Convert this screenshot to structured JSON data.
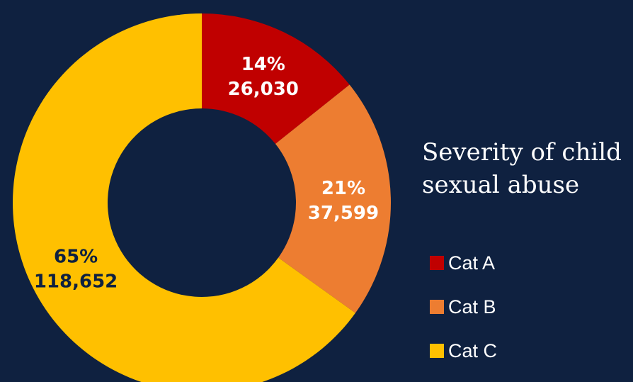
{
  "chart_data": {
    "type": "pie",
    "variant": "donut",
    "title_lines": [
      "Severity of child",
      "sexual abuse"
    ],
    "legend_position": "right",
    "slices": [
      {
        "name": "Cat A",
        "value": 26030,
        "value_label": "26,030",
        "percent_label": "14%",
        "color": "#c00000",
        "label_color": "#ffffff"
      },
      {
        "name": "Cat B",
        "value": 37599,
        "value_label": "37,599",
        "percent_label": "21%",
        "color": "#ed7d31",
        "label_color": "#ffffff"
      },
      {
        "name": "Cat C",
        "value": 118652,
        "value_label": "118,652",
        "percent_label": "65%",
        "color": "#ffc000",
        "label_color": "#0f2140"
      }
    ]
  },
  "colors": {
    "background": "#0f2140",
    "text": "#ffffff"
  }
}
